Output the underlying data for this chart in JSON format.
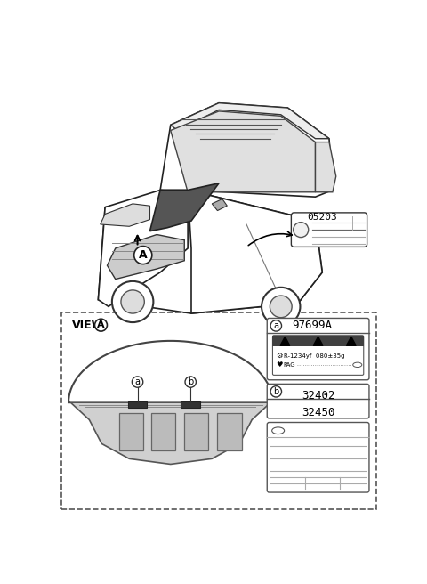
{
  "bg_color": "#ffffff",
  "fig_width": 4.8,
  "fig_height": 6.56,
  "dpi": 100,
  "label_05203": "05203",
  "label_97699A": "97699A",
  "label_view_A": "VIEW",
  "label_32402": "32402",
  "label_32450": "32450",
  "label_R1234yf": "R-1234yf  080±35g",
  "label_PAG": "PAG"
}
